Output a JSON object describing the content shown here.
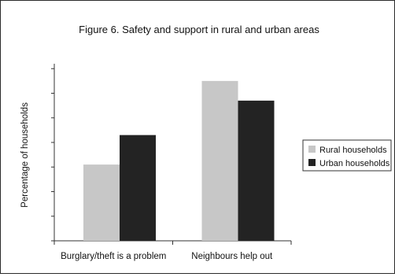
{
  "chart_data": {
    "type": "bar",
    "title": "Figure 6. Safety and support in rural and urban areas",
    "xlabel": "",
    "ylabel": "Percentage of households",
    "categories": [
      "Burglary/theft is a problem",
      "Neighbours help out"
    ],
    "series": [
      {
        "name": "Rural households",
        "values": [
          31,
          65
        ],
        "color": "#c7c7c7"
      },
      {
        "name": "Urban households",
        "values": [
          43,
          57
        ],
        "color": "#232323"
      }
    ],
    "ylim": [
      0,
      72
    ],
    "ytick_values": [
      0,
      10,
      20,
      30,
      40,
      50,
      60,
      70
    ],
    "ytick_labels_shown": false,
    "grid": false,
    "legend_position": "right"
  }
}
